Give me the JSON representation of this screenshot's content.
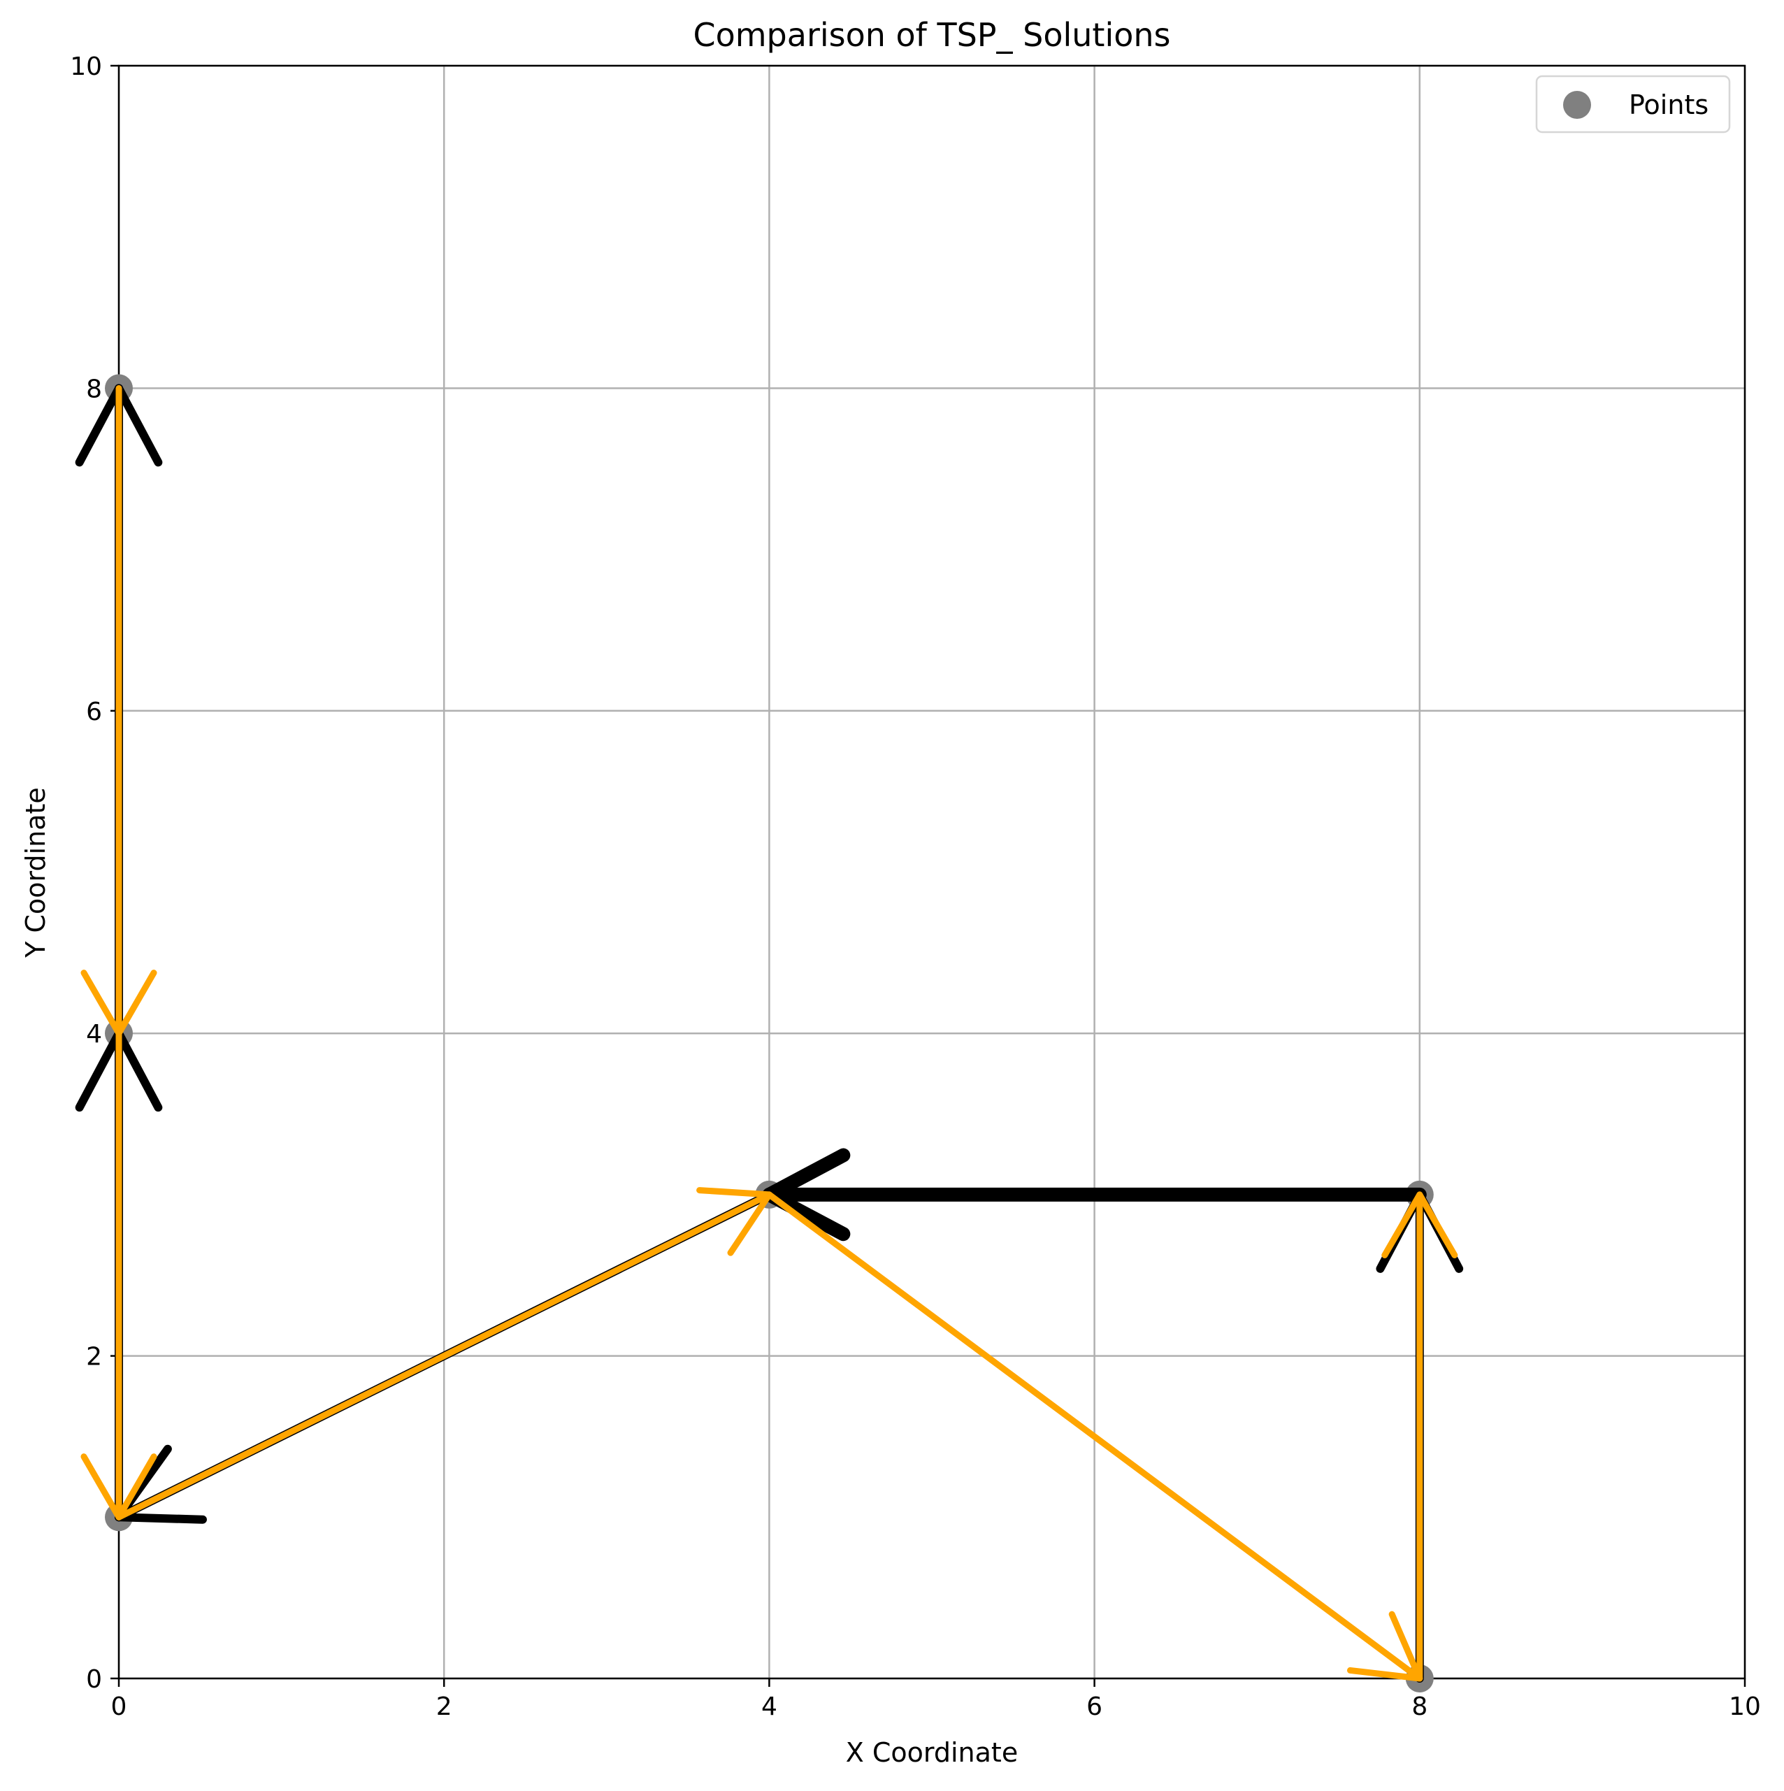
{
  "chart_data": {
    "type": "line",
    "title": "Comparison of TSP_ Solutions",
    "xlabel": "X Coordinate",
    "ylabel": "Y Coordinate",
    "xlim": [
      0,
      10
    ],
    "ylim": [
      0,
      10
    ],
    "xticks": [
      0,
      2,
      4,
      6,
      8,
      10
    ],
    "yticks": [
      0,
      2,
      4,
      6,
      8,
      10
    ],
    "grid": true,
    "legend": {
      "placement": "top-right",
      "entries": [
        {
          "label": "Points",
          "color": "#808080",
          "marker": "circle"
        }
      ]
    },
    "points": [
      {
        "x": 0,
        "y": 8
      },
      {
        "x": 0,
        "y": 4
      },
      {
        "x": 0,
        "y": 1
      },
      {
        "x": 4,
        "y": 3
      },
      {
        "x": 8,
        "y": 3
      },
      {
        "x": 8,
        "y": 0
      }
    ],
    "series": [
      {
        "color": "#000000",
        "style": "thick-arrows",
        "segments": [
          {
            "from": [
              8,
              0
            ],
            "to": [
              8,
              3
            ]
          },
          {
            "from": [
              8,
              3
            ],
            "to": [
              4,
              3
            ]
          },
          {
            "from": [
              4,
              3
            ],
            "to": [
              0,
              1
            ]
          },
          {
            "from": [
              0,
              1
            ],
            "to": [
              0,
              4
            ]
          },
          {
            "from": [
              0,
              4
            ],
            "to": [
              0,
              8
            ]
          }
        ]
      },
      {
        "color": "#FFA500",
        "style": "thin-arrows",
        "segments": [
          {
            "from": [
              0,
              8
            ],
            "to": [
              0,
              4
            ]
          },
          {
            "from": [
              0,
              4
            ],
            "to": [
              0,
              1
            ]
          },
          {
            "from": [
              0,
              1
            ],
            "to": [
              4,
              3
            ]
          },
          {
            "from": [
              4,
              3
            ],
            "to": [
              8,
              0
            ]
          },
          {
            "from": [
              8,
              0
            ],
            "to": [
              8,
              3
            ]
          }
        ]
      }
    ]
  }
}
